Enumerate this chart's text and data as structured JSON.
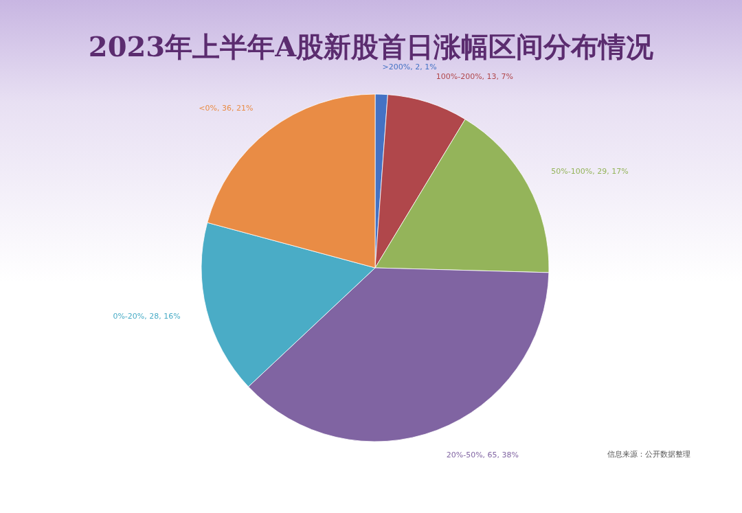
{
  "chart_data": {
    "type": "pie",
    "title": "2023年上半年A股新股首日涨幅区间分布情况",
    "categories": [
      ">200%",
      "100%-200%",
      "50%-100%",
      "20%-50%",
      "0%-20%",
      "<0%"
    ],
    "values": [
      2,
      13,
      29,
      65,
      28,
      36
    ],
    "value_labels": [
      "2, 1%",
      "13, 7%",
      "29, 17%",
      "65, 38%",
      "28, 16%",
      "36, 21%"
    ],
    "colors": [
      "#4472c4",
      "#b0474b",
      "#94b45a",
      "#8064a2",
      "#4aacc6",
      "#e98c45"
    ],
    "annotations": [
      "信息来源：公开数据整理"
    ]
  }
}
